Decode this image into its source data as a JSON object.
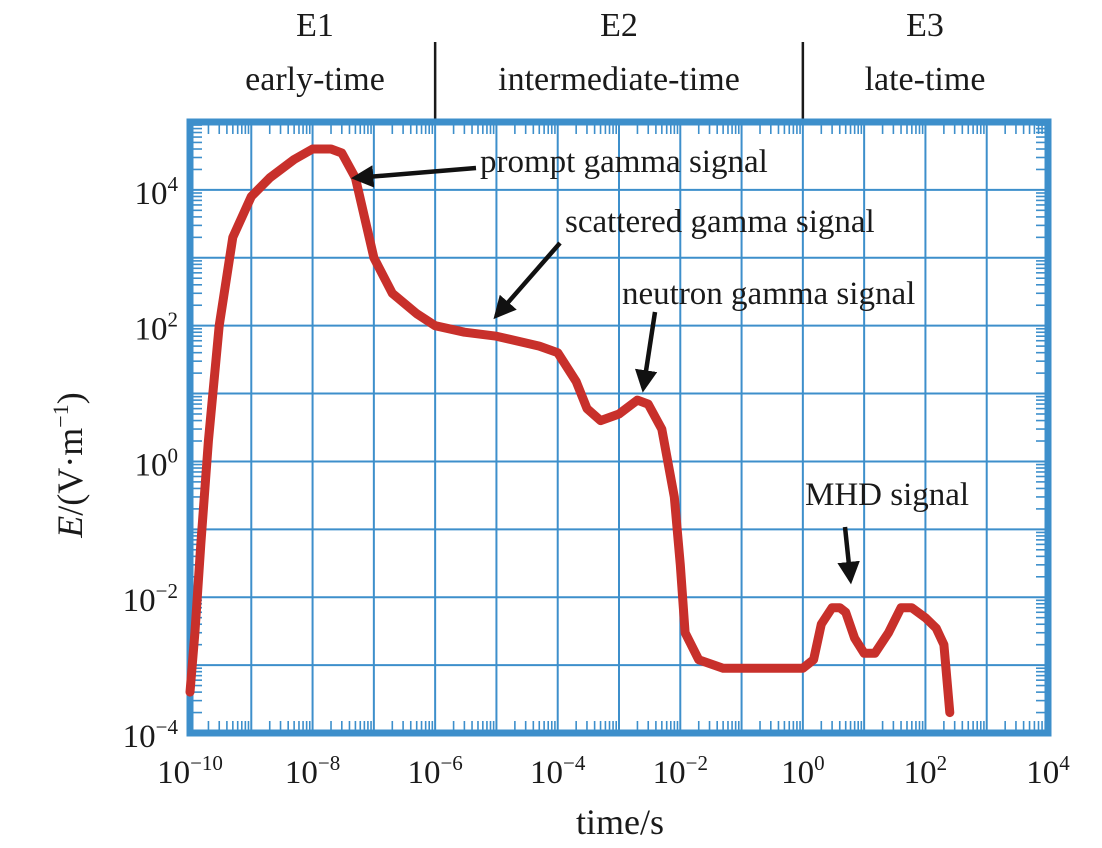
{
  "chart_data": {
    "type": "line",
    "xlabel": "time/s",
    "ylabel_var": "E",
    "ylabel_unit": "/(V·m",
    "ylabel_unit_exp": "−1",
    "ylabel_close": ")",
    "x_scale": "log",
    "y_scale": "log",
    "xlim": [
      1e-10,
      10000
    ],
    "ylim": [
      0.0001,
      100000
    ],
    "grid": true,
    "grid_color": "#3d8fcb",
    "line_color": "#c8302b",
    "x_ticks": [
      {
        "value": 1e-10,
        "base": "10",
        "exp": "−10"
      },
      {
        "value": 1e-08,
        "base": "10",
        "exp": "−8"
      },
      {
        "value": 1e-06,
        "base": "10",
        "exp": "−6"
      },
      {
        "value": 0.0001,
        "base": "10",
        "exp": "−4"
      },
      {
        "value": 0.01,
        "base": "10",
        "exp": "−2"
      },
      {
        "value": 1,
        "base": "10",
        "exp": "0"
      },
      {
        "value": 100,
        "base": "10",
        "exp": "2"
      },
      {
        "value": 10000,
        "base": "10",
        "exp": "4"
      }
    ],
    "y_ticks": [
      {
        "value": 0.0001,
        "base": "10",
        "exp": "−4"
      },
      {
        "value": 0.01,
        "base": "10",
        "exp": "−2"
      },
      {
        "value": 1,
        "base": "10",
        "exp": "0"
      },
      {
        "value": 100,
        "base": "10",
        "exp": "2"
      },
      {
        "value": 10000,
        "base": "10",
        "exp": "4"
      }
    ],
    "time_segments": [
      {
        "label": "E1",
        "sublabel": "early-time",
        "from": 1e-10,
        "to": 1e-06
      },
      {
        "label": "E2",
        "sublabel": "intermediate-time",
        "from": 1e-06,
        "to": 1
      },
      {
        "label": "E3",
        "sublabel": "late-time",
        "from": 1,
        "to": 10000
      }
    ],
    "series": [
      {
        "x": [
          1e-10,
          1.2e-10,
          1.5e-10,
          2e-10,
          3e-10,
          5e-10,
          1e-09,
          2e-09,
          5e-09,
          1e-08,
          2e-08,
          3e-08,
          5e-08,
          1e-07,
          2e-07,
          5e-07,
          1e-06,
          3e-06,
          1e-05,
          5e-05,
          0.0001,
          0.0002,
          0.0003,
          0.0005,
          0.001,
          0.002,
          0.003,
          0.005,
          0.008,
          0.01,
          0.012,
          0.02,
          0.05,
          0.1,
          0.5,
          1,
          1.5,
          2,
          3,
          4,
          5,
          7,
          10,
          15,
          25,
          40,
          60,
          100,
          150,
          200,
          250
        ],
        "y": [
          0.0004,
          0.003,
          0.06,
          2,
          100,
          2000,
          8000,
          15000,
          28000,
          40000,
          40000,
          35000,
          15000,
          1000,
          300,
          150,
          100,
          80,
          70,
          50,
          40,
          15,
          6,
          4,
          5,
          8,
          7,
          3,
          0.3,
          0.03,
          0.003,
          0.0012,
          0.0009,
          0.0009,
          0.0009,
          0.0009,
          0.0012,
          0.004,
          0.007,
          0.007,
          0.006,
          0.0025,
          0.0015,
          0.0015,
          0.003,
          0.007,
          0.007,
          0.005,
          0.0035,
          0.002,
          0.0002
        ]
      }
    ],
    "annotations": [
      {
        "text": "prompt gamma signal",
        "x": 5e-08,
        "y": 15000
      },
      {
        "text": "scattered gamma signal",
        "x": 1e-05,
        "y": 140
      },
      {
        "text": "neutron gamma signal",
        "x": 0.0025,
        "y": 12
      },
      {
        "text": "MHD signal",
        "x": 6,
        "y": 0.018
      }
    ]
  }
}
